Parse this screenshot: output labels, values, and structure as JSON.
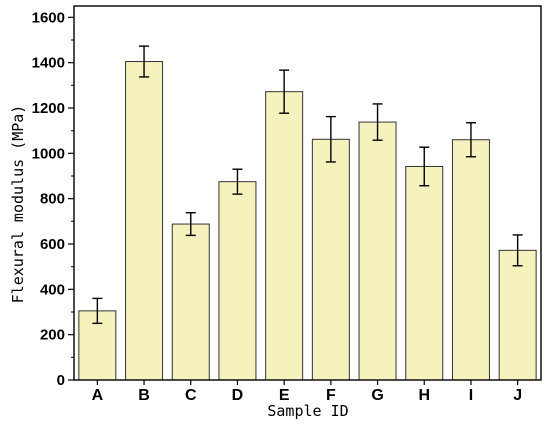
{
  "chart_data": {
    "type": "bar",
    "categories": [
      "A",
      "B",
      "C",
      "D",
      "E",
      "F",
      "G",
      "H",
      "I",
      "J"
    ],
    "values": [
      305,
      1405,
      688,
      875,
      1272,
      1062,
      1138,
      942,
      1060,
      572
    ],
    "errors": [
      55,
      68,
      50,
      55,
      95,
      100,
      80,
      85,
      75,
      68
    ],
    "xlabel": "Sample ID",
    "ylabel": "Flexural modulus (MPa)",
    "ylim": [
      0,
      1650
    ],
    "yticks": [
      0,
      200,
      400,
      600,
      800,
      1000,
      1200,
      1400,
      1600
    ],
    "grid": false,
    "colors": {
      "bar_fill": "#f6f2bd",
      "bar_stroke": "#333333",
      "axis": "#000000"
    }
  }
}
